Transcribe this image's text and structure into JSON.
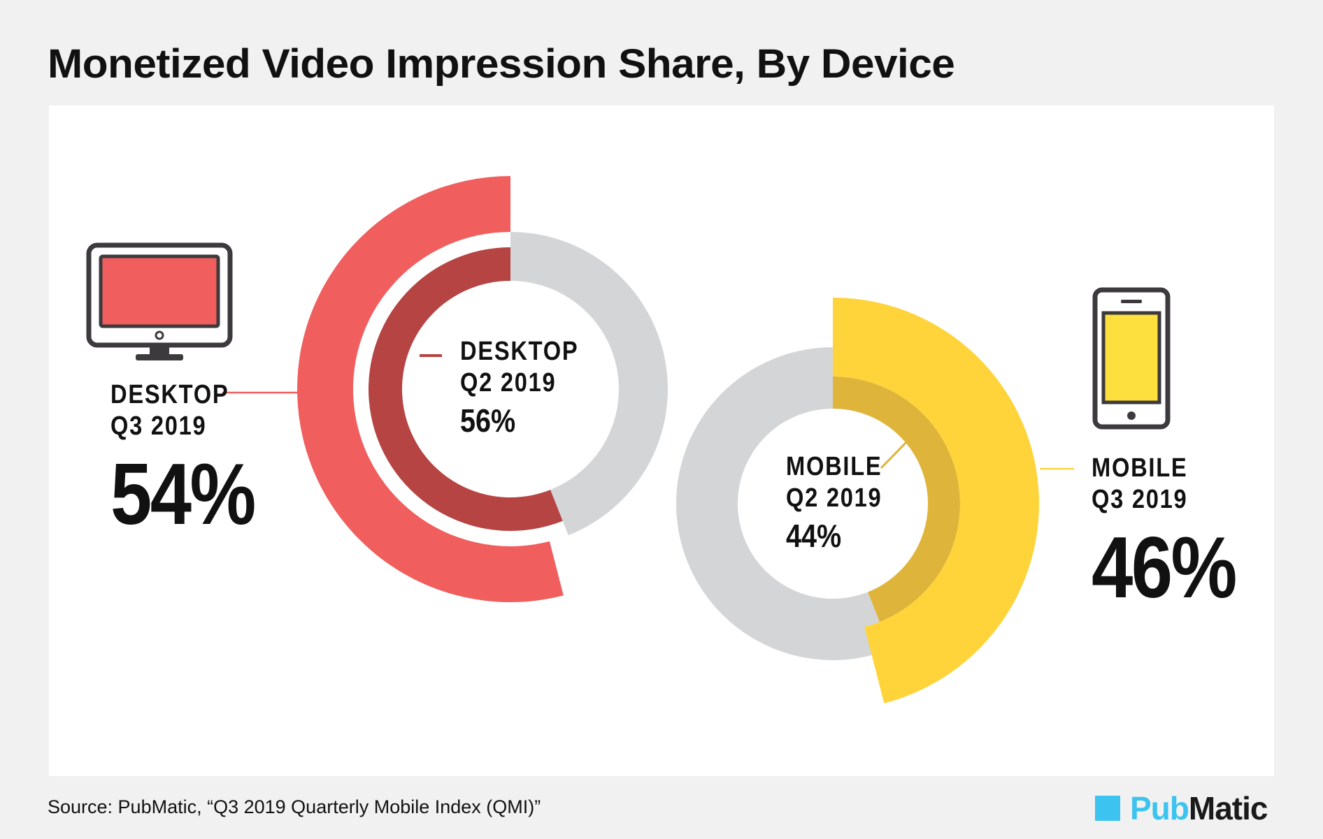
{
  "title": "Monetized Video Impression Share, By Device",
  "source": "Source: PubMatic, “Q3 2019 Quarterly Mobile Index (QMI)”",
  "logo": {
    "part1": "Pub",
    "part2": "Matic",
    "color": "#3cc3ef"
  },
  "colors": {
    "desktop_q3": "#f05e5e",
    "desktop_q2": "#b54443",
    "mobile_q3": "#ffd43b",
    "mobile_q2": "#dfb43a",
    "remainder": "#d4d5d7",
    "desktop_screen": "#f05e5e",
    "mobile_screen": "#fde03d"
  },
  "icons": [
    "desktop-monitor-icon",
    "mobile-phone-icon"
  ],
  "chart_data": [
    {
      "type": "pie",
      "series": [
        {
          "category": "DESKTOP",
          "period": "Q3 2019",
          "value": 54,
          "display": "54%"
        },
        {
          "category": "DESKTOP",
          "period": "Q2 2019",
          "value": 56,
          "display": "56%"
        }
      ]
    },
    {
      "type": "pie",
      "series": [
        {
          "category": "MOBILE",
          "period": "Q3 2019",
          "value": 46,
          "display": "46%"
        },
        {
          "category": "MOBILE",
          "period": "Q2 2019",
          "value": 44,
          "display": "44%"
        }
      ]
    }
  ]
}
